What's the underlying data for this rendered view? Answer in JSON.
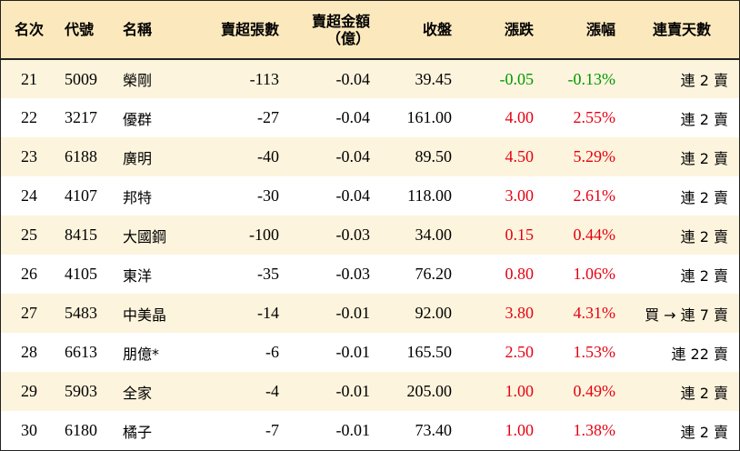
{
  "headers": {
    "rank": "名次",
    "code": "代號",
    "name": "名稱",
    "net_sell_lots": "賣超張數",
    "net_sell_amount": "賣超金額",
    "net_sell_amount_unit": "（億）",
    "close": "收盤",
    "change": "漲跌",
    "change_pct": "漲幅",
    "streak": "連賣天數"
  },
  "colors": {
    "header_bg": "#fbe9bd",
    "odd_row_bg": "#fdf4dd",
    "up": "#e60012",
    "down": "#009900"
  },
  "rows": [
    {
      "rank": "21",
      "code": "5009",
      "name": "榮剛",
      "lots": "-113",
      "amount": "-0.04",
      "close": "39.45",
      "change": "-0.05",
      "pct": "-0.13%",
      "dir": "down",
      "streak": "連 2 賣"
    },
    {
      "rank": "22",
      "code": "3217",
      "name": "優群",
      "lots": "-27",
      "amount": "-0.04",
      "close": "161.00",
      "change": "4.00",
      "pct": "2.55%",
      "dir": "up",
      "streak": "連 2 賣"
    },
    {
      "rank": "23",
      "code": "6188",
      "name": "廣明",
      "lots": "-40",
      "amount": "-0.04",
      "close": "89.50",
      "change": "4.50",
      "pct": "5.29%",
      "dir": "up",
      "streak": "連 2 賣"
    },
    {
      "rank": "24",
      "code": "4107",
      "name": "邦特",
      "lots": "-30",
      "amount": "-0.04",
      "close": "118.00",
      "change": "3.00",
      "pct": "2.61%",
      "dir": "up",
      "streak": "連 2 賣"
    },
    {
      "rank": "25",
      "code": "8415",
      "name": "大國鋼",
      "lots": "-100",
      "amount": "-0.03",
      "close": "34.00",
      "change": "0.15",
      "pct": "0.44%",
      "dir": "up",
      "streak": "連 2 賣"
    },
    {
      "rank": "26",
      "code": "4105",
      "name": "東洋",
      "lots": "-35",
      "amount": "-0.03",
      "close": "76.20",
      "change": "0.80",
      "pct": "1.06%",
      "dir": "up",
      "streak": "連 2 賣"
    },
    {
      "rank": "27",
      "code": "5483",
      "name": "中美晶",
      "lots": "-14",
      "amount": "-0.01",
      "close": "92.00",
      "change": "3.80",
      "pct": "4.31%",
      "dir": "up",
      "streak": "買 → 連 7 賣"
    },
    {
      "rank": "28",
      "code": "6613",
      "name": "朋億*",
      "lots": "-6",
      "amount": "-0.01",
      "close": "165.50",
      "change": "2.50",
      "pct": "1.53%",
      "dir": "up",
      "streak": "連 22 賣"
    },
    {
      "rank": "29",
      "code": "5903",
      "name": "全家",
      "lots": "-4",
      "amount": "-0.01",
      "close": "205.00",
      "change": "1.00",
      "pct": "0.49%",
      "dir": "up",
      "streak": "連 2 賣"
    },
    {
      "rank": "30",
      "code": "6180",
      "name": "橘子",
      "lots": "-7",
      "amount": "-0.01",
      "close": "73.40",
      "change": "1.00",
      "pct": "1.38%",
      "dir": "up",
      "streak": "連 2 賣"
    }
  ]
}
